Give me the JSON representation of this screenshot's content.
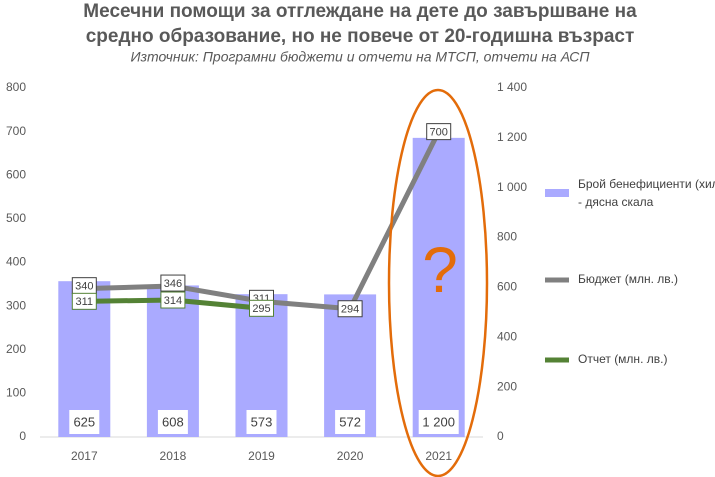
{
  "chart_data": {
    "type": "combo",
    "title": [
      "Месечни помощи за отглеждане на дете до завършване на",
      "средно образование, но не повече от 20-годишна възраст"
    ],
    "subtitle": "Източник: Програмни бюджети и отчети на МТСП, отчети на АСП",
    "categories": [
      "2017",
      "2018",
      "2019",
      "2020",
      "2021"
    ],
    "series": [
      {
        "name": "Брой бенефициенти (хиляди) - дясна скала",
        "type": "bar",
        "axis": "y2",
        "color": "#aaaaff",
        "values": [
          625,
          608,
          573,
          572,
          1200
        ],
        "value_labels": [
          "625",
          "608",
          "573",
          "572",
          "1 200"
        ]
      },
      {
        "name": "Бюджет (млн. лв.)",
        "type": "line",
        "color": "#808080",
        "values": [
          340,
          346,
          311,
          294,
          700
        ]
      },
      {
        "name": "Отчет (млн. лв.)",
        "type": "line",
        "color": "#548235",
        "values": [
          311,
          314,
          295,
          null,
          null
        ]
      }
    ],
    "ylim": [
      0,
      800
    ],
    "yticks": [
      0,
      100,
      200,
      300,
      400,
      500,
      600,
      700,
      800
    ],
    "y2lim": [
      0,
      1400
    ],
    "y2ticks": [
      0,
      200,
      400,
      600,
      800,
      {
        "value": 1000,
        "label": "1 000"
      },
      {
        "value": 1200,
        "label": "1 200"
      },
      {
        "value": 1400,
        "label": "1 400"
      }
    ],
    "annotations": [
      "?"
    ],
    "grid": false,
    "legend": "right"
  }
}
